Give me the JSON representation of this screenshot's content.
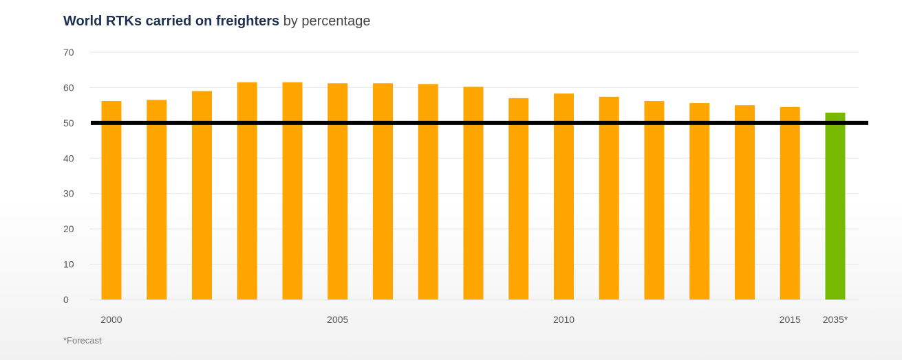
{
  "title": {
    "bold": "World RTKs carried on freighters",
    "light": "by percentage"
  },
  "footnote": "*Forecast",
  "chart_data": {
    "type": "bar",
    "title": "World RTKs carried on freighters by percentage",
    "xlabel": "",
    "ylabel": "",
    "ylim": [
      0,
      70
    ],
    "yticks": [
      0,
      10,
      20,
      30,
      40,
      50,
      60,
      70
    ],
    "grid": true,
    "categories": [
      "2000",
      "2001",
      "2002",
      "2003",
      "2004",
      "2005",
      "2006",
      "2007",
      "2008",
      "2009",
      "2010",
      "2011",
      "2012",
      "2013",
      "2014",
      "2015",
      "2035*"
    ],
    "xtick_labels": [
      "2000",
      "",
      "",
      "",
      "",
      "2005",
      "",
      "",
      "",
      "",
      "2010",
      "",
      "",
      "",
      "",
      "2015",
      "2035*"
    ],
    "values": [
      56.2,
      56.5,
      59.0,
      61.5,
      61.5,
      61.2,
      61.2,
      61.0,
      60.2,
      57.0,
      58.3,
      57.4,
      56.2,
      55.6,
      55.0,
      54.5,
      52.9
    ],
    "reference_line": 50,
    "colors": {
      "actual": "#ffa500",
      "forecast": "#77b800",
      "reference": "#000000",
      "grid": "#e6e6e6"
    }
  }
}
